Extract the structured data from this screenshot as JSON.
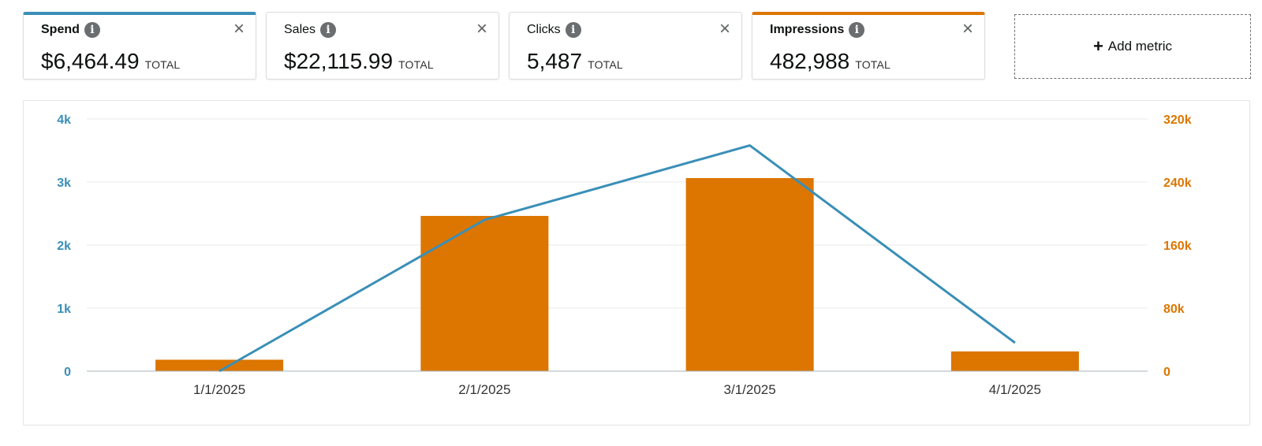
{
  "metric_cards": [
    {
      "label": "Spend",
      "value": "$6,464.49",
      "suffix": "TOTAL",
      "selected": true,
      "accent": "#3a8fb7"
    },
    {
      "label": "Sales",
      "value": "$22,115.99",
      "suffix": "TOTAL",
      "selected": false,
      "accent": ""
    },
    {
      "label": "Clicks",
      "value": "5,487",
      "suffix": "TOTAL",
      "selected": false,
      "accent": ""
    },
    {
      "label": "Impressions",
      "value": "482,988",
      "suffix": "TOTAL",
      "selected": true,
      "accent": "#dc7600"
    }
  ],
  "close_glyph": "×",
  "info_glyph": "i",
  "add_metric": {
    "plus": "+",
    "label": "Add metric"
  },
  "colors": {
    "spend": "#3a8fb7",
    "impressions": "#dc7600",
    "grid": "#e8eaeb",
    "axis": "#a9b4ba"
  },
  "chart_data": {
    "type": "bar",
    "categories": [
      "1/1/2025",
      "2/1/2025",
      "3/1/2025",
      "4/1/2025"
    ],
    "series": [
      {
        "name": "Impressions",
        "kind": "bar",
        "axis": "right",
        "values": [
          14500,
          197000,
          245000,
          25000
        ]
      },
      {
        "name": "Spend",
        "kind": "line",
        "axis": "left",
        "values": [
          0,
          2400,
          3580,
          450
        ]
      }
    ],
    "left_axis": {
      "ylim": [
        0,
        4000
      ],
      "ticks": [
        0,
        1000,
        2000,
        3000,
        4000
      ],
      "tick_labels": [
        "0",
        "1k",
        "2k",
        "3k",
        "4k"
      ]
    },
    "right_axis": {
      "ylim": [
        0,
        320000
      ],
      "ticks": [
        0,
        80000,
        160000,
        240000,
        320000
      ],
      "tick_labels": [
        "0",
        "80k",
        "160k",
        "240k",
        "320k"
      ]
    },
    "grid": true
  }
}
